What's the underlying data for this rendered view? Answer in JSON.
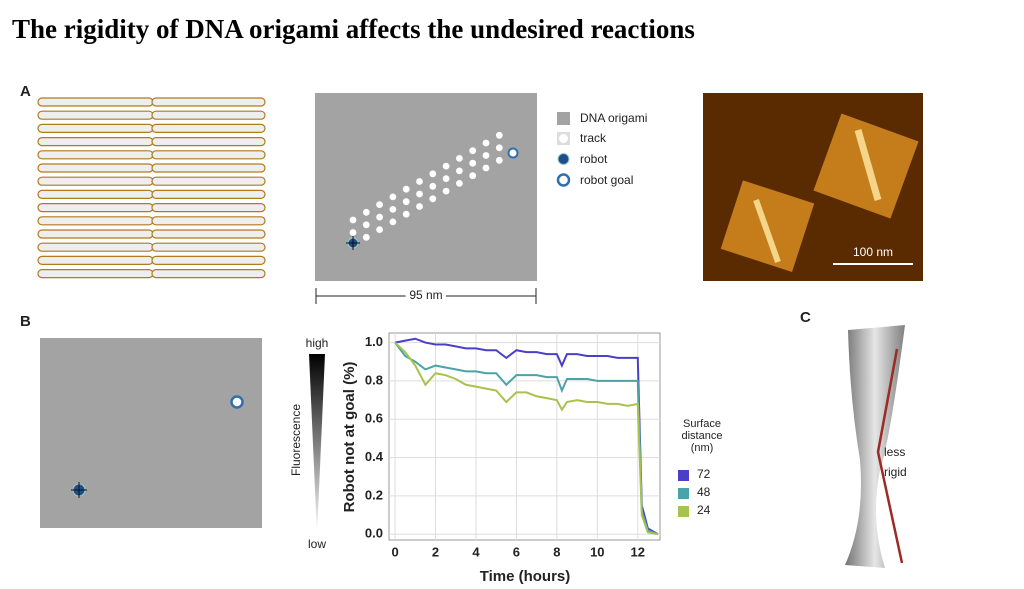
{
  "header": {
    "title": "The rigidity of DNA origami affects the undesired reactions"
  },
  "panels": {
    "a": "A",
    "b": "B",
    "c": "C"
  },
  "panel_a": {
    "legend": [
      "DNA origami",
      "track",
      "robot",
      "robot goal"
    ],
    "scale": "95 nm",
    "afm_scale": "100 nm"
  },
  "panel_b": {
    "fluorescence_high": "high",
    "fluorescence_label": "Fluorescence",
    "fluorescence_low": "low"
  },
  "panel_c": {
    "annotation": "less rigid"
  },
  "chart_data": {
    "type": "line",
    "x_label": "Time (hours)",
    "y_label": "Robot not at goal (%)",
    "legend_title": "Surface distance (nm)",
    "x": [
      0,
      0.5,
      1,
      1.5,
      2,
      2.5,
      3,
      3.5,
      4,
      4.5,
      5,
      5.5,
      6,
      6.5,
      7,
      7.5,
      8,
      8.25,
      8.5,
      9,
      9.5,
      10,
      10.5,
      11,
      11.5,
      12,
      12.2,
      12.5,
      13
    ],
    "series": [
      {
        "name": "72",
        "color": "#4b3fc8",
        "values": [
          1.0,
          1.01,
          1.02,
          1.0,
          0.99,
          0.99,
          0.98,
          0.97,
          0.97,
          0.96,
          0.96,
          0.92,
          0.96,
          0.95,
          0.95,
          0.94,
          0.94,
          0.88,
          0.94,
          0.94,
          0.93,
          0.93,
          0.93,
          0.92,
          0.92,
          0.92,
          0.15,
          0.03,
          0.0
        ]
      },
      {
        "name": "48",
        "color": "#4aa3a8",
        "values": [
          1.0,
          0.93,
          0.9,
          0.86,
          0.88,
          0.87,
          0.86,
          0.85,
          0.85,
          0.84,
          0.84,
          0.78,
          0.83,
          0.83,
          0.83,
          0.82,
          0.82,
          0.75,
          0.81,
          0.81,
          0.81,
          0.8,
          0.8,
          0.8,
          0.8,
          0.8,
          0.12,
          0.02,
          0.0
        ]
      },
      {
        "name": "24",
        "color": "#a8c24e",
        "values": [
          1.0,
          0.95,
          0.88,
          0.78,
          0.84,
          0.83,
          0.81,
          0.78,
          0.77,
          0.76,
          0.75,
          0.69,
          0.74,
          0.74,
          0.72,
          0.71,
          0.7,
          0.65,
          0.69,
          0.7,
          0.69,
          0.69,
          0.68,
          0.68,
          0.67,
          0.68,
          0.1,
          0.01,
          0.0
        ]
      }
    ],
    "xlim": [
      -0.3,
      13.1
    ],
    "ylim": [
      -0.03,
      1.05
    ],
    "xticks": [
      0,
      2,
      4,
      6,
      8,
      10,
      12
    ],
    "yticks": [
      {
        "value": 0,
        "label": "0.0"
      },
      0.2,
      0.4,
      0.6,
      0.8,
      {
        "value": 1,
        "label": "1.0"
      }
    ],
    "grid": true
  }
}
